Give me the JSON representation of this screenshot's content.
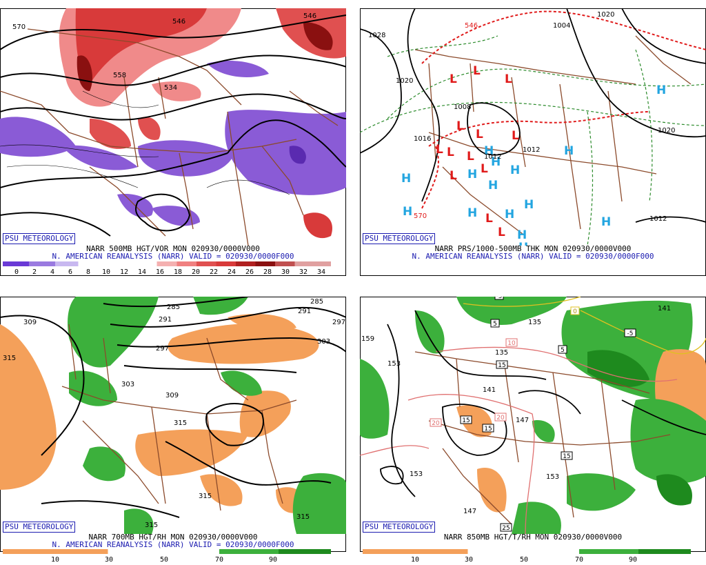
{
  "logo": "PSU METEOROLOGY",
  "panels": [
    {
      "title1": "NARR 500MB HGT/VOR MON 020930/0000V000",
      "title2": "N. AMERICAN REANALYSIS (NARR) VALID = 020930/0000F000",
      "ticks": [
        "0",
        "2",
        "4",
        "6",
        "8",
        "10",
        "12",
        "14",
        "16",
        "18",
        "20",
        "22",
        "24",
        "26",
        "28",
        "30",
        "32",
        "34"
      ],
      "contours": [
        "570",
        "558",
        "534",
        "546",
        "546"
      ]
    },
    {
      "title1": "NARR PRS/1000-500MB THK MON 020930/0000V000",
      "title2": "N. AMERICAN REANALYSIS (NARR) VALID = 020930/0000F000",
      "contours": [
        "1028",
        "1020",
        "1020",
        "1008",
        "1012",
        "1012",
        "1016",
        "1004",
        "570",
        "546",
        "1020",
        "1012"
      ]
    },
    {
      "title1": "NARR 700MB HGT/RH MON 020930/0000V000",
      "title2": "N. AMERICAN REANALYSIS (NARR) VALID = 020930/0000F000",
      "ticks": [
        "10",
        "30",
        "50",
        "70",
        "90"
      ],
      "contours": [
        "309",
        "315",
        "285",
        "291",
        "297",
        "303",
        "303",
        "309",
        "315",
        "315",
        "315",
        "291",
        "285",
        "297"
      ]
    },
    {
      "title1": "NARR 850MB HGT/T/RH MON 020930/0000V000",
      "ticks": [
        "10",
        "30",
        "50",
        "70",
        "90"
      ],
      "contours": [
        "159",
        "153",
        "135",
        "141",
        "147",
        "153",
        "153",
        "147",
        "141",
        "135"
      ],
      "boxes": [
        "-5",
        "5",
        "10",
        "15",
        "15",
        "20",
        "20",
        "15",
        "15",
        "25",
        "-5",
        "5",
        "0"
      ]
    }
  ],
  "colors": {
    "vor_pos": "#d83a3a",
    "vor_neg": "#8a5bd6",
    "rh_dry": "#f4a05a",
    "rh_moist": "#3cb03c",
    "border": "#8b4a2b",
    "high": "#22a5e0",
    "low": "#e01a1a"
  }
}
